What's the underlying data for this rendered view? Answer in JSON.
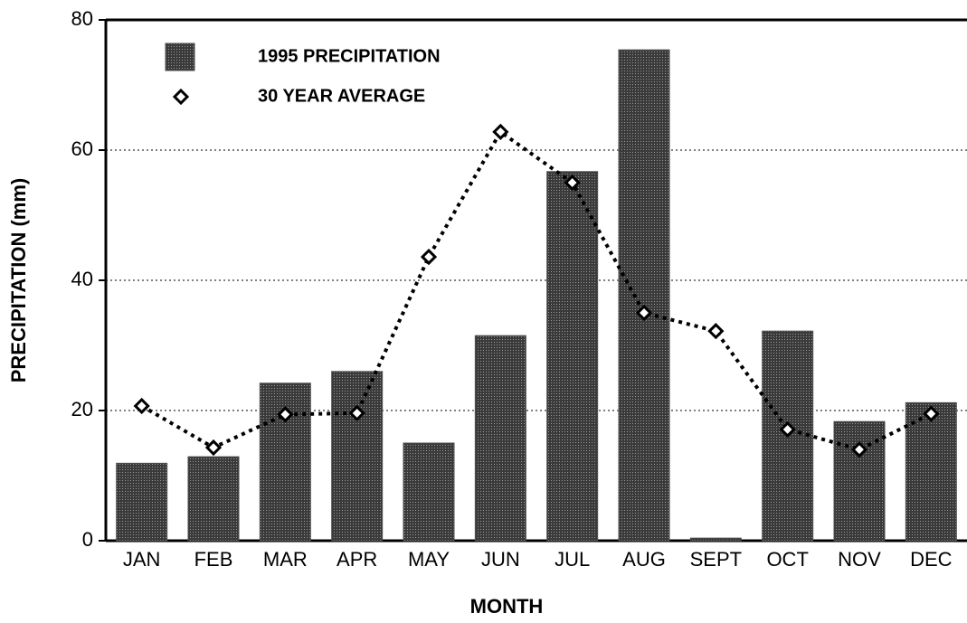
{
  "chart_data": {
    "type": "bar_line",
    "x_label": "MONTH",
    "y_label": "PRECIPITATION (mm)",
    "categories": [
      "JAN",
      "FEB",
      "MAR",
      "APR",
      "MAY",
      "JUN",
      "JUL",
      "AUG",
      "SEPT",
      "OCT",
      "NOV",
      "DEC"
    ],
    "series": [
      {
        "name": "1995 PRECIPITATION",
        "type": "bar",
        "color": "#4d4d4d",
        "values": [
          11.9,
          12.9,
          24.2,
          26,
          15,
          31.5,
          56.7,
          75.4,
          0.4,
          32.2,
          18.3,
          21.2
        ]
      },
      {
        "name": "30 YEAR AVERAGE",
        "type": "line",
        "color": "#000000",
        "values": [
          20.7,
          14.3,
          19.4,
          19.6,
          43.6,
          62.8,
          55,
          35,
          32.2,
          17.1,
          14,
          19.5
        ]
      }
    ],
    "ylim": [
      0,
      80
    ],
    "yticks": [
      0,
      20,
      40,
      60,
      80
    ],
    "grid": true
  }
}
